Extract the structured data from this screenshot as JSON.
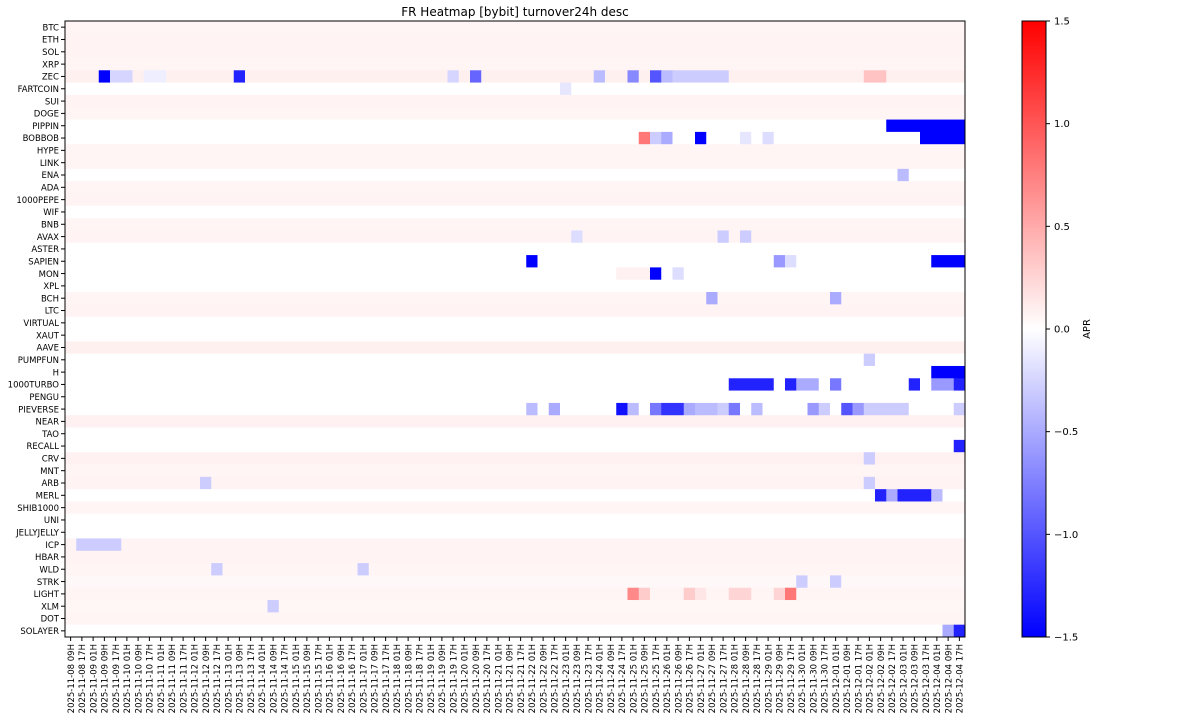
{
  "chart_data": {
    "type": "heatmap",
    "title": "FR Heatmap [bybit] turnover24h desc",
    "xlabel": "",
    "ylabel": "",
    "colorbar": {
      "label": "APR",
      "range": [
        -1.5,
        1.5
      ],
      "ticks": [
        "1.5",
        "1.0",
        "0.5",
        "0.0",
        "−0.5",
        "−1.0",
        "−1.5"
      ],
      "tick_values": [
        1.5,
        1.0,
        0.5,
        0.0,
        -0.5,
        -1.0,
        -1.5
      ],
      "colormap": "bwr",
      "colors": {
        "low": "#0000ff",
        "mid": "#ffffff",
        "high": "#ff0000"
      }
    },
    "rows": [
      "BTC",
      "ETH",
      "SOL",
      "XRP",
      "ZEC",
      "FARTCOIN",
      "SUI",
      "DOGE",
      "PIPPIN",
      "BOBBOB",
      "HYPE",
      "LINK",
      "ENA",
      "ADA",
      "1000PEPE",
      "WIF",
      "BNB",
      "AVAX",
      "ASTER",
      "SAPIEN",
      "MON",
      "XPL",
      "BCH",
      "LTC",
      "VIRTUAL",
      "XAUT",
      "AAVE",
      "PUMPFUN",
      "H",
      "1000TURBO",
      "PENGU",
      "PIEVERSE",
      "NEAR",
      "TAO",
      "RECALL",
      "CRV",
      "MNT",
      "ARB",
      "MERL",
      "SHIB1000",
      "UNI",
      "JELLYJELLY",
      "ICP",
      "HBAR",
      "WLD",
      "STRK",
      "LIGHT",
      "XLM",
      "DOT",
      "SOLAYER"
    ],
    "columns": [
      "2025-11-08 09H",
      "2025-11-08 17H",
      "2025-11-09 01H",
      "2025-11-09 09H",
      "2025-11-09 17H",
      "2025-11-10 01H",
      "2025-11-10 09H",
      "2025-11-10 17H",
      "2025-11-11 01H",
      "2025-11-11 09H",
      "2025-11-11 17H",
      "2025-11-12 01H",
      "2025-11-12 09H",
      "2025-11-12 17H",
      "2025-11-13 01H",
      "2025-11-13 09H",
      "2025-11-13 17H",
      "2025-11-14 01H",
      "2025-11-14 09H",
      "2025-11-14 17H",
      "2025-11-15 01H",
      "2025-11-15 09H",
      "2025-11-15 17H",
      "2025-11-16 01H",
      "2025-11-16 09H",
      "2025-11-16 17H",
      "2025-11-17 01H",
      "2025-11-17 09H",
      "2025-11-17 17H",
      "2025-11-18 01H",
      "2025-11-18 09H",
      "2025-11-18 17H",
      "2025-11-19 01H",
      "2025-11-19 09H",
      "2025-11-19 17H",
      "2025-11-20 01H",
      "2025-11-20 09H",
      "2025-11-20 17H",
      "2025-11-21 01H",
      "2025-11-21 09H",
      "2025-11-21 17H",
      "2025-11-22 01H",
      "2025-11-22 09H",
      "2025-11-22 17H",
      "2025-11-23 01H",
      "2025-11-23 09H",
      "2025-11-23 17H",
      "2025-11-24 01H",
      "2025-11-24 09H",
      "2025-11-24 17H",
      "2025-11-25 01H",
      "2025-11-25 09H",
      "2025-11-25 17H",
      "2025-11-26 01H",
      "2025-11-26 09H",
      "2025-11-26 17H",
      "2025-11-27 01H",
      "2025-11-27 09H",
      "2025-11-27 17H",
      "2025-11-28 01H",
      "2025-11-28 09H",
      "2025-11-28 17H",
      "2025-11-29 01H",
      "2025-11-29 09H",
      "2025-11-29 17H",
      "2025-11-30 01H",
      "2025-11-30 09H",
      "2025-11-30 17H",
      "2025-12-01 01H",
      "2025-12-01 09H",
      "2025-12-01 17H",
      "2025-12-02 01H",
      "2025-12-02 09H",
      "2025-12-02 17H",
      "2025-12-03 01H",
      "2025-12-03 09H",
      "2025-12-03 17H",
      "2025-12-04 01H",
      "2025-12-04 09H",
      "2025-12-04 17H"
    ],
    "default_value": 0.0,
    "row_defaults": {
      "BTC": 0.06,
      "ETH": 0.07,
      "SOL": 0.07,
      "XRP": 0.06,
      "ZEC": 0.09,
      "SUI": 0.07,
      "DOGE": 0.06,
      "HYPE": 0.06,
      "LINK": 0.06,
      "ADA": 0.06,
      "1000PEPE": 0.07,
      "BNB": 0.06,
      "AVAX": 0.07,
      "BCH": 0.06,
      "LTC": 0.07,
      "AAVE": 0.09,
      "NEAR": 0.08,
      "CRV": 0.08,
      "MNT": 0.06,
      "ARB": 0.07,
      "SHIB1000": 0.06,
      "ICP": 0.07,
      "HBAR": 0.07,
      "WLD": 0.06,
      "DOT": 0.06,
      "LIGHT": 0.06,
      "STRK": 0.04,
      "XLM": 0.05
    },
    "cells": [
      {
        "row": "ZEC",
        "col": 3,
        "value": -1.5
      },
      {
        "row": "ZEC",
        "col": 4,
        "value": -0.25
      },
      {
        "row": "ZEC",
        "col": 5,
        "value": -0.25
      },
      {
        "row": "ZEC",
        "col": 7,
        "value": -0.1
      },
      {
        "row": "ZEC",
        "col": 8,
        "value": -0.1
      },
      {
        "row": "ZEC",
        "col": 15,
        "value": -1.3
      },
      {
        "row": "ZEC",
        "col": 34,
        "value": -0.25
      },
      {
        "row": "ZEC",
        "col": 36,
        "value": -0.9
      },
      {
        "row": "ZEC",
        "col": 47,
        "value": -0.4
      },
      {
        "row": "ZEC",
        "col": 50,
        "value": -0.7
      },
      {
        "row": "ZEC",
        "col": 52,
        "value": -1.0
      },
      {
        "row": "ZEC",
        "col": 53,
        "value": -0.4
      },
      {
        "row": "ZEC",
        "col": 54,
        "value": -0.3
      },
      {
        "row": "ZEC",
        "col": 55,
        "value": -0.3
      },
      {
        "row": "ZEC",
        "col": 56,
        "value": -0.3
      },
      {
        "row": "ZEC",
        "col": 57,
        "value": -0.3
      },
      {
        "row": "ZEC",
        "col": 58,
        "value": -0.3
      },
      {
        "row": "ZEC",
        "col": 71,
        "value": 0.35
      },
      {
        "row": "ZEC",
        "col": 72,
        "value": 0.35
      },
      {
        "row": "FARTCOIN",
        "col": 44,
        "value": -0.15
      },
      {
        "row": "PIPPIN",
        "col": 73,
        "value": -1.5
      },
      {
        "row": "PIPPIN",
        "col": 74,
        "value": -1.5
      },
      {
        "row": "PIPPIN",
        "col": 75,
        "value": -1.5
      },
      {
        "row": "PIPPIN",
        "col": 76,
        "value": -1.5
      },
      {
        "row": "PIPPIN",
        "col": 77,
        "value": -1.5
      },
      {
        "row": "PIPPIN",
        "col": 78,
        "value": -1.5
      },
      {
        "row": "PIPPIN",
        "col": 79,
        "value": -1.5
      },
      {
        "row": "BOBBOB",
        "col": 51,
        "value": 0.8
      },
      {
        "row": "BOBBOB",
        "col": 52,
        "value": -0.3
      },
      {
        "row": "BOBBOB",
        "col": 53,
        "value": -0.5
      },
      {
        "row": "BOBBOB",
        "col": 56,
        "value": -1.5
      },
      {
        "row": "BOBBOB",
        "col": 60,
        "value": -0.15
      },
      {
        "row": "BOBBOB",
        "col": 62,
        "value": -0.2
      },
      {
        "row": "BOBBOB",
        "col": 76,
        "value": -1.5
      },
      {
        "row": "BOBBOB",
        "col": 77,
        "value": -1.5
      },
      {
        "row": "BOBBOB",
        "col": 78,
        "value": -1.5
      },
      {
        "row": "BOBBOB",
        "col": 79,
        "value": -1.5
      },
      {
        "row": "ENA",
        "col": 74,
        "value": -0.4
      },
      {
        "row": "AVAX",
        "col": 45,
        "value": -0.2
      },
      {
        "row": "AVAX",
        "col": 58,
        "value": -0.3
      },
      {
        "row": "AVAX",
        "col": 60,
        "value": -0.3
      },
      {
        "row": "SAPIEN",
        "col": 41,
        "value": -1.5
      },
      {
        "row": "SAPIEN",
        "col": 63,
        "value": -0.6
      },
      {
        "row": "SAPIEN",
        "col": 64,
        "value": -0.2
      },
      {
        "row": "SAPIEN",
        "col": 77,
        "value": -1.5
      },
      {
        "row": "SAPIEN",
        "col": 78,
        "value": -1.5
      },
      {
        "row": "SAPIEN",
        "col": 79,
        "value": -1.5
      },
      {
        "row": "MON",
        "col": 49,
        "value": 0.08
      },
      {
        "row": "MON",
        "col": 50,
        "value": 0.08
      },
      {
        "row": "MON",
        "col": 51,
        "value": 0.08
      },
      {
        "row": "MON",
        "col": 52,
        "value": -1.5
      },
      {
        "row": "MON",
        "col": 54,
        "value": -0.2
      },
      {
        "row": "BCH",
        "col": 57,
        "value": -0.5
      },
      {
        "row": "BCH",
        "col": 68,
        "value": -0.5
      },
      {
        "row": "PUMPFUN",
        "col": 71,
        "value": -0.3
      },
      {
        "row": "H",
        "col": 77,
        "value": -1.5
      },
      {
        "row": "H",
        "col": 78,
        "value": -1.5
      },
      {
        "row": "H",
        "col": 79,
        "value": -1.5
      },
      {
        "row": "1000TURBO",
        "col": 59,
        "value": -1.3
      },
      {
        "row": "1000TURBO",
        "col": 60,
        "value": -1.3
      },
      {
        "row": "1000TURBO",
        "col": 61,
        "value": -1.3
      },
      {
        "row": "1000TURBO",
        "col": 62,
        "value": -1.3
      },
      {
        "row": "1000TURBO",
        "col": 64,
        "value": -1.3
      },
      {
        "row": "1000TURBO",
        "col": 65,
        "value": -0.5
      },
      {
        "row": "1000TURBO",
        "col": 66,
        "value": -0.5
      },
      {
        "row": "1000TURBO",
        "col": 68,
        "value": -0.8
      },
      {
        "row": "1000TURBO",
        "col": 75,
        "value": -1.3
      },
      {
        "row": "1000TURBO",
        "col": 77,
        "value": -0.6
      },
      {
        "row": "1000TURBO",
        "col": 78,
        "value": -0.6
      },
      {
        "row": "1000TURBO",
        "col": 79,
        "value": -1.3
      },
      {
        "row": "PIEVERSE",
        "col": 41,
        "value": -0.4
      },
      {
        "row": "PIEVERSE",
        "col": 43,
        "value": -0.5
      },
      {
        "row": "PIEVERSE",
        "col": 49,
        "value": -1.4
      },
      {
        "row": "PIEVERSE",
        "col": 50,
        "value": -0.4
      },
      {
        "row": "PIEVERSE",
        "col": 52,
        "value": -0.8
      },
      {
        "row": "PIEVERSE",
        "col": 53,
        "value": -1.2
      },
      {
        "row": "PIEVERSE",
        "col": 54,
        "value": -1.2
      },
      {
        "row": "PIEVERSE",
        "col": 55,
        "value": -0.5
      },
      {
        "row": "PIEVERSE",
        "col": 56,
        "value": -0.4
      },
      {
        "row": "PIEVERSE",
        "col": 57,
        "value": -0.4
      },
      {
        "row": "PIEVERSE",
        "col": 58,
        "value": -0.3
      },
      {
        "row": "PIEVERSE",
        "col": 59,
        "value": -0.8
      },
      {
        "row": "PIEVERSE",
        "col": 61,
        "value": -0.4
      },
      {
        "row": "PIEVERSE",
        "col": 66,
        "value": -0.6
      },
      {
        "row": "PIEVERSE",
        "col": 67,
        "value": -0.3
      },
      {
        "row": "PIEVERSE",
        "col": 69,
        "value": -1.0
      },
      {
        "row": "PIEVERSE",
        "col": 70,
        "value": -0.6
      },
      {
        "row": "PIEVERSE",
        "col": 71,
        "value": -0.3
      },
      {
        "row": "PIEVERSE",
        "col": 72,
        "value": -0.3
      },
      {
        "row": "PIEVERSE",
        "col": 73,
        "value": -0.3
      },
      {
        "row": "PIEVERSE",
        "col": 74,
        "value": -0.3
      },
      {
        "row": "PIEVERSE",
        "col": 79,
        "value": -0.3
      },
      {
        "row": "RECALL",
        "col": 79,
        "value": -1.3
      },
      {
        "row": "CRV",
        "col": 71,
        "value": -0.3
      },
      {
        "row": "ARB",
        "col": 12,
        "value": -0.3
      },
      {
        "row": "ARB",
        "col": 71,
        "value": -0.3
      },
      {
        "row": "MERL",
        "col": 72,
        "value": -1.3
      },
      {
        "row": "MERL",
        "col": 73,
        "value": -0.5
      },
      {
        "row": "MERL",
        "col": 74,
        "value": -1.3
      },
      {
        "row": "MERL",
        "col": 75,
        "value": -1.3
      },
      {
        "row": "MERL",
        "col": 76,
        "value": -1.3
      },
      {
        "row": "MERL",
        "col": 77,
        "value": -0.4
      },
      {
        "row": "ICP",
        "col": 1,
        "value": -0.3
      },
      {
        "row": "ICP",
        "col": 2,
        "value": -0.3
      },
      {
        "row": "ICP",
        "col": 3,
        "value": -0.3
      },
      {
        "row": "ICP",
        "col": 4,
        "value": -0.3
      },
      {
        "row": "WLD",
        "col": 13,
        "value": -0.3
      },
      {
        "row": "WLD",
        "col": 26,
        "value": -0.3
      },
      {
        "row": "STRK",
        "col": 65,
        "value": -0.3
      },
      {
        "row": "STRK",
        "col": 68,
        "value": -0.3
      },
      {
        "row": "LIGHT",
        "col": 50,
        "value": 0.7
      },
      {
        "row": "LIGHT",
        "col": 51,
        "value": 0.3
      },
      {
        "row": "LIGHT",
        "col": 55,
        "value": 0.3
      },
      {
        "row": "LIGHT",
        "col": 56,
        "value": 0.15
      },
      {
        "row": "LIGHT",
        "col": 59,
        "value": 0.25
      },
      {
        "row": "LIGHT",
        "col": 60,
        "value": 0.25
      },
      {
        "row": "LIGHT",
        "col": 63,
        "value": 0.25
      },
      {
        "row": "LIGHT",
        "col": 64,
        "value": 0.8
      },
      {
        "row": "XLM",
        "col": 18,
        "value": -0.3
      },
      {
        "row": "SOLAYER",
        "col": 78,
        "value": -0.5
      },
      {
        "row": "SOLAYER",
        "col": 79,
        "value": -1.3
      }
    ],
    "grid": false,
    "legend": "none"
  }
}
